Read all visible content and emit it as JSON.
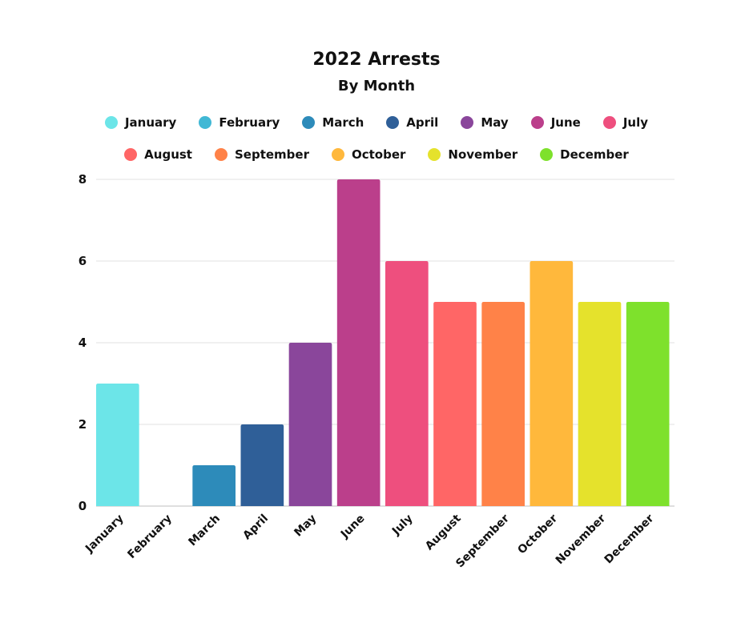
{
  "chart_data": {
    "type": "bar",
    "title": "2022 Arrests",
    "subtitle": "By Month",
    "xlabel": "",
    "ylabel": "",
    "ylim": [
      0,
      8
    ],
    "yticks": [
      0,
      2,
      4,
      6,
      8
    ],
    "ytick_labels": [
      "0",
      "2",
      "4",
      "6",
      "8"
    ],
    "grid": true,
    "legend_position": "top",
    "categories": [
      "January",
      "February",
      "March",
      "April",
      "May",
      "June",
      "July",
      "August",
      "September",
      "October",
      "November",
      "December"
    ],
    "values": [
      3,
      0,
      1,
      2,
      4,
      8,
      6,
      5,
      5,
      6,
      5,
      5
    ],
    "colors": [
      "#6ce5e8",
      "#41b8d5",
      "#2d8bba",
      "#2f5f98",
      "#8a469b",
      "#bb3f8b",
      "#ee4f7e",
      "#ff6666",
      "#ff8248",
      "#ffb83c",
      "#e5e22c",
      "#7ee12c"
    ],
    "legend": [
      {
        "label": "January",
        "color": "#6ce5e8"
      },
      {
        "label": "February",
        "color": "#41b8d5"
      },
      {
        "label": "March",
        "color": "#2d8bba"
      },
      {
        "label": "April",
        "color": "#2f5f98"
      },
      {
        "label": "May",
        "color": "#8a469b"
      },
      {
        "label": "June",
        "color": "#bb3f8b"
      },
      {
        "label": "July",
        "color": "#ee4f7e"
      },
      {
        "label": "August",
        "color": "#ff6666"
      },
      {
        "label": "September",
        "color": "#ff8248"
      },
      {
        "label": "October",
        "color": "#ffb83c"
      },
      {
        "label": "November",
        "color": "#e5e22c"
      },
      {
        "label": "December",
        "color": "#7ee12c"
      }
    ]
  }
}
